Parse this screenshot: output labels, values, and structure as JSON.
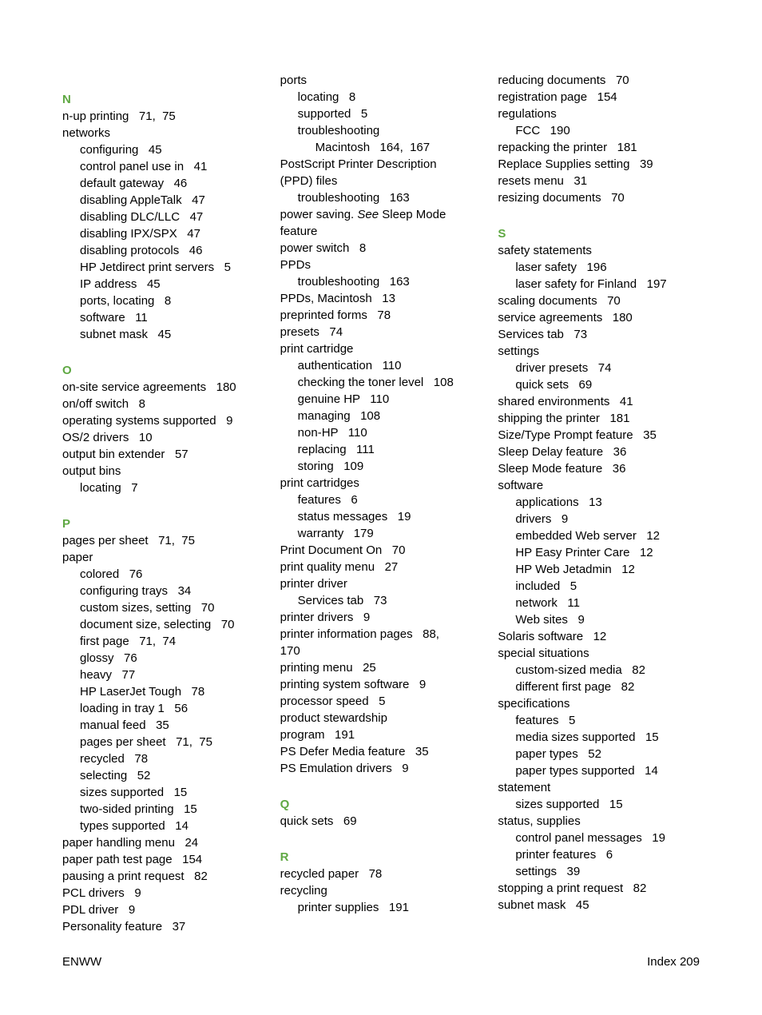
{
  "columns": [
    {
      "groups": [
        {
          "letter": "N",
          "lines": [
            {
              "t": "n-up printing",
              "p": "   71,  75"
            },
            {
              "t": "networks",
              "p": ""
            },
            {
              "t": "configuring",
              "p": "   45",
              "cls": "sub"
            },
            {
              "t": "control panel use in",
              "p": "   41",
              "cls": "sub"
            },
            {
              "t": "default gateway",
              "p": "   46",
              "cls": "sub"
            },
            {
              "t": "disabling AppleTalk",
              "p": "   47",
              "cls": "sub"
            },
            {
              "t": "disabling DLC/LLC",
              "p": "   47",
              "cls": "sub"
            },
            {
              "t": "disabling IPX/SPX",
              "p": "   47",
              "cls": "sub"
            },
            {
              "t": "disabling protocols",
              "p": "   46",
              "cls": "sub"
            },
            {
              "t": "HP Jetdirect print servers",
              "p": "   5",
              "cls": "sub"
            },
            {
              "t": "IP address",
              "p": "   45",
              "cls": "sub"
            },
            {
              "t": "ports, locating",
              "p": "   8",
              "cls": "sub"
            },
            {
              "t": "software",
              "p": "   11",
              "cls": "sub"
            },
            {
              "t": "subnet mask",
              "p": "   45",
              "cls": "sub"
            }
          ]
        },
        {
          "letter": "O",
          "lines": [
            {
              "t": "on-site service agreements",
              "p": "   180"
            },
            {
              "t": "on/off switch",
              "p": "   8"
            },
            {
              "t": "operating systems supported",
              "p": "   9"
            },
            {
              "t": "OS/2 drivers",
              "p": "   10"
            },
            {
              "t": "output bin extender",
              "p": "   57"
            },
            {
              "t": "output bins",
              "p": ""
            },
            {
              "t": "locating",
              "p": "   7",
              "cls": "sub"
            }
          ]
        },
        {
          "letter": "P",
          "lines": [
            {
              "t": "pages per sheet",
              "p": "   71,  75"
            },
            {
              "t": "paper",
              "p": ""
            },
            {
              "t": "colored",
              "p": "   76",
              "cls": "sub"
            },
            {
              "t": "configuring trays",
              "p": "   34",
              "cls": "sub"
            },
            {
              "t": "custom sizes, setting",
              "p": "   70",
              "cls": "sub"
            },
            {
              "t": "document size, selecting",
              "p": "   70",
              "cls": "sub"
            },
            {
              "t": "first page",
              "p": "   71,  74",
              "cls": "sub"
            },
            {
              "t": "glossy",
              "p": "   76",
              "cls": "sub"
            },
            {
              "t": "heavy",
              "p": "   77",
              "cls": "sub"
            },
            {
              "t": "HP LaserJet Tough",
              "p": "   78",
              "cls": "sub"
            },
            {
              "t": "loading in tray 1",
              "p": "   56",
              "cls": "sub"
            },
            {
              "t": "manual feed",
              "p": "   35",
              "cls": "sub"
            },
            {
              "t": "pages per sheet",
              "p": "   71,  75",
              "cls": "sub"
            },
            {
              "t": "recycled",
              "p": "   78",
              "cls": "sub"
            },
            {
              "t": "selecting",
              "p": "   52",
              "cls": "sub"
            },
            {
              "t": "sizes supported",
              "p": "   15",
              "cls": "sub"
            },
            {
              "t": "two-sided printing",
              "p": "   15",
              "cls": "sub"
            },
            {
              "t": "types supported",
              "p": "   14",
              "cls": "sub"
            },
            {
              "t": "paper handling menu",
              "p": "   24"
            },
            {
              "t": "paper path test page",
              "p": "   154"
            },
            {
              "t": "pausing a print request",
              "p": "   82"
            },
            {
              "t": "PCL drivers",
              "p": "   9"
            },
            {
              "t": "PDL driver",
              "p": "   9"
            },
            {
              "t": "Personality feature",
              "p": "   37"
            }
          ]
        }
      ]
    },
    {
      "groups": [
        {
          "letter": "",
          "lines": [
            {
              "t": "ports",
              "p": ""
            },
            {
              "t": "locating",
              "p": "   8",
              "cls": "sub"
            },
            {
              "t": "supported",
              "p": "   5",
              "cls": "sub"
            },
            {
              "t": "troubleshooting",
              "p": "",
              "cls": "sub"
            },
            {
              "t": "Macintosh",
              "p": "   164,  167",
              "cls": "sub2"
            },
            {
              "t": "PostScript Printer Description",
              "p": ""
            },
            {
              "t": " (PPD) files",
              "p": "",
              "cls": ""
            },
            {
              "t": "troubleshooting",
              "p": "   163",
              "cls": "sub"
            },
            {
              "html": "power saving. <span class=\"italic\">See</span> Sleep Mode"
            },
            {
              "t": " feature",
              "p": "",
              "cls": ""
            },
            {
              "t": "power switch",
              "p": "   8"
            },
            {
              "t": "PPDs",
              "p": ""
            },
            {
              "t": "troubleshooting",
              "p": "   163",
              "cls": "sub"
            },
            {
              "t": "PPDs, Macintosh",
              "p": "   13"
            },
            {
              "t": "preprinted forms",
              "p": "   78"
            },
            {
              "t": "presets",
              "p": "   74"
            },
            {
              "t": "print cartridge",
              "p": ""
            },
            {
              "t": "authentication",
              "p": "   110",
              "cls": "sub"
            },
            {
              "t": "checking the toner level",
              "p": "   108",
              "cls": "sub"
            },
            {
              "t": "genuine HP",
              "p": "   110",
              "cls": "sub"
            },
            {
              "t": "managing",
              "p": "   108",
              "cls": "sub"
            },
            {
              "t": "non-HP",
              "p": "   110",
              "cls": "sub"
            },
            {
              "t": "replacing",
              "p": "   111",
              "cls": "sub"
            },
            {
              "t": "storing",
              "p": "   109",
              "cls": "sub"
            },
            {
              "t": "print cartridges",
              "p": ""
            },
            {
              "t": "features",
              "p": "   6",
              "cls": "sub"
            },
            {
              "t": "status messages",
              "p": "   19",
              "cls": "sub"
            },
            {
              "t": "warranty",
              "p": "   179",
              "cls": "sub"
            },
            {
              "t": "Print Document On",
              "p": "   70"
            },
            {
              "t": "print quality menu",
              "p": "   27"
            },
            {
              "t": "printer driver",
              "p": ""
            },
            {
              "t": "Services tab",
              "p": "   73",
              "cls": "sub"
            },
            {
              "t": "printer drivers",
              "p": "   9"
            },
            {
              "t": "printer information pages",
              "p": "   88,"
            },
            {
              "t": " 170",
              "p": "",
              "cls": ""
            },
            {
              "t": "printing menu",
              "p": "   25"
            },
            {
              "t": "printing system software",
              "p": "   9"
            },
            {
              "t": "processor speed",
              "p": "   5"
            },
            {
              "t": "product stewardship",
              "p": ""
            },
            {
              "t": " program",
              "p": "   191",
              "cls": ""
            },
            {
              "t": "PS Defer Media feature",
              "p": "   35"
            },
            {
              "t": "PS Emulation drivers",
              "p": "   9"
            }
          ]
        },
        {
          "letter": "Q",
          "lines": [
            {
              "t": "quick sets",
              "p": "   69"
            }
          ]
        },
        {
          "letter": "R",
          "lines": [
            {
              "t": "recycled paper",
              "p": "   78"
            },
            {
              "t": "recycling",
              "p": ""
            },
            {
              "t": "printer supplies",
              "p": "   191",
              "cls": "sub"
            }
          ]
        }
      ]
    },
    {
      "groups": [
        {
          "letter": "",
          "lines": [
            {
              "t": "reducing documents",
              "p": "   70"
            },
            {
              "t": "registration page",
              "p": "   154"
            },
            {
              "t": "regulations",
              "p": ""
            },
            {
              "t": "FCC",
              "p": "   190",
              "cls": "sub"
            },
            {
              "t": "repacking the printer",
              "p": "   181"
            },
            {
              "t": "Replace Supplies setting",
              "p": "   39"
            },
            {
              "t": "resets menu",
              "p": "   31"
            },
            {
              "t": "resizing documents",
              "p": "   70"
            }
          ]
        },
        {
          "letter": "S",
          "lines": [
            {
              "t": "safety statements",
              "p": ""
            },
            {
              "t": "laser safety",
              "p": "   196",
              "cls": "sub"
            },
            {
              "t": "laser safety for Finland",
              "p": "   197",
              "cls": "sub"
            },
            {
              "t": "scaling documents",
              "p": "   70"
            },
            {
              "t": "service agreements",
              "p": "   180"
            },
            {
              "t": "Services tab",
              "p": "   73"
            },
            {
              "t": "settings",
              "p": ""
            },
            {
              "t": "driver presets",
              "p": "   74",
              "cls": "sub"
            },
            {
              "t": "quick sets",
              "p": "   69",
              "cls": "sub"
            },
            {
              "t": "shared environments",
              "p": "   41"
            },
            {
              "t": "shipping the printer",
              "p": "   181"
            },
            {
              "t": "Size/Type Prompt feature",
              "p": "   35"
            },
            {
              "t": "Sleep Delay feature",
              "p": "   36"
            },
            {
              "t": "Sleep Mode feature",
              "p": "   36"
            },
            {
              "t": "software",
              "p": ""
            },
            {
              "t": "applications",
              "p": "   13",
              "cls": "sub"
            },
            {
              "t": "drivers",
              "p": "   9",
              "cls": "sub"
            },
            {
              "t": "embedded Web server",
              "p": "   12",
              "cls": "sub"
            },
            {
              "t": "HP Easy Printer Care",
              "p": "   12",
              "cls": "sub"
            },
            {
              "t": "HP Web Jetadmin",
              "p": "   12",
              "cls": "sub"
            },
            {
              "t": "included",
              "p": "   5",
              "cls": "sub"
            },
            {
              "t": "network",
              "p": "   11",
              "cls": "sub"
            },
            {
              "t": "Web sites",
              "p": "   9",
              "cls": "sub"
            },
            {
              "t": "Solaris software",
              "p": "   12"
            },
            {
              "t": "special situations",
              "p": ""
            },
            {
              "t": "custom-sized media",
              "p": "   82",
              "cls": "sub"
            },
            {
              "t": "different first page",
              "p": "   82",
              "cls": "sub"
            },
            {
              "t": "specifications",
              "p": ""
            },
            {
              "t": "features",
              "p": "   5",
              "cls": "sub"
            },
            {
              "t": "media sizes supported",
              "p": "   15",
              "cls": "sub"
            },
            {
              "t": "paper types",
              "p": "   52",
              "cls": "sub"
            },
            {
              "t": "paper types supported",
              "p": "   14",
              "cls": "sub"
            },
            {
              "t": "statement",
              "p": ""
            },
            {
              "t": "sizes supported",
              "p": "   15",
              "cls": "sub"
            },
            {
              "t": "status, supplies",
              "p": ""
            },
            {
              "t": "control panel messages",
              "p": "   19",
              "cls": "sub"
            },
            {
              "t": "printer features",
              "p": "   6",
              "cls": "sub"
            },
            {
              "t": "settings",
              "p": "   39",
              "cls": "sub"
            },
            {
              "t": "stopping a print request",
              "p": "   82"
            },
            {
              "t": "subnet mask",
              "p": "   45"
            }
          ]
        }
      ]
    }
  ],
  "footer": {
    "left": "ENWW",
    "right_label": "Index",
    "right_page": "209"
  }
}
